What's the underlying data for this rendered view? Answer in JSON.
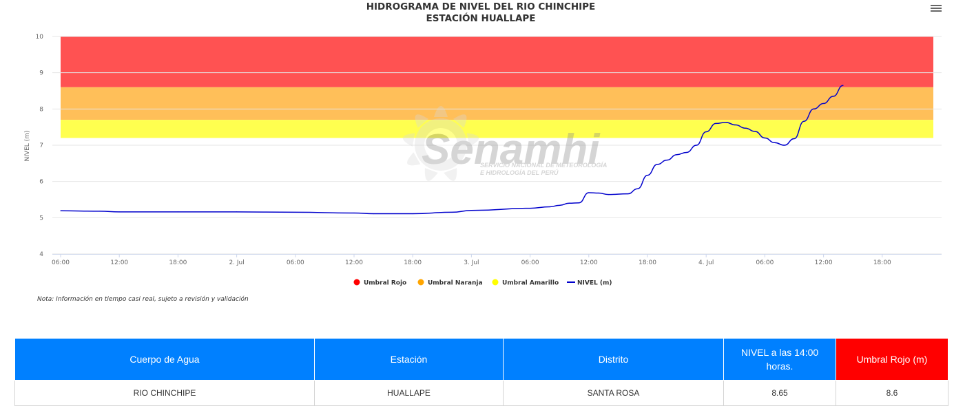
{
  "chart_data": {
    "type": "line",
    "title": "HIDROGRAMA DE NIVEL DEL RIO CHINCHIPE",
    "subtitle": "ESTACIÓN HUALLAPE",
    "ylabel": "NIVEL (m)",
    "xlabel": "",
    "ylim": [
      4,
      10
    ],
    "yticks": [
      "4",
      "5",
      "6",
      "7",
      "8",
      "9",
      "10"
    ],
    "xlim": [
      "2024-07-01T06:00",
      "2024-07-04T23:00"
    ],
    "xticks": [
      "06:00",
      "12:00",
      "18:00",
      "2. Jul",
      "06:00",
      "12:00",
      "18:00",
      "3. Jul",
      "06:00",
      "12:00",
      "18:00",
      "4. Jul",
      "06:00",
      "12:00",
      "18:00"
    ],
    "grid": true,
    "legend_position": "bottom-center",
    "bands": [
      {
        "name": "Umbral Rojo",
        "from": 8.6,
        "to": 10,
        "color": "#ff5252"
      },
      {
        "name": "Umbral Naranja",
        "from": 7.7,
        "to": 8.6,
        "color": "#ffbf59"
      },
      {
        "name": "Umbral Amarillo",
        "from": 7.2,
        "to": 7.7,
        "color": "#ffff4f"
      }
    ],
    "legend": [
      {
        "name": "Umbral Rojo",
        "color": "#ff0000",
        "marker": "circle"
      },
      {
        "name": "Umbral Naranja",
        "color": "#ffa500",
        "marker": "circle"
      },
      {
        "name": "Umbral Amarillo",
        "color": "#ffff00",
        "marker": "circle"
      },
      {
        "name": "NIVEL (m)",
        "color": "#0000cc",
        "marker": "line"
      }
    ],
    "series": [
      {
        "name": "NIVEL (m)",
        "color": "#0000cc",
        "x": [
          "2024-07-01T06:00",
          "2024-07-01T10:00",
          "2024-07-01T12:00",
          "2024-07-01T18:00",
          "2024-07-02T00:00",
          "2024-07-02T06:00",
          "2024-07-02T12:00",
          "2024-07-02T14:00",
          "2024-07-02T18:00",
          "2024-07-02T22:00",
          "2024-07-03T00:00",
          "2024-07-03T06:00",
          "2024-07-03T08:00",
          "2024-07-03T09:00",
          "2024-07-03T10:00",
          "2024-07-03T11:00",
          "2024-07-03T12:00",
          "2024-07-03T13:00",
          "2024-07-03T14:00",
          "2024-07-03T16:00",
          "2024-07-03T17:00",
          "2024-07-03T18:00",
          "2024-07-03T19:00",
          "2024-07-03T20:00",
          "2024-07-03T21:00",
          "2024-07-03T22:00",
          "2024-07-03T23:00",
          "2024-07-04T00:00",
          "2024-07-04T01:00",
          "2024-07-04T02:00",
          "2024-07-04T03:00",
          "2024-07-04T04:00",
          "2024-07-04T05:00",
          "2024-07-04T06:00",
          "2024-07-04T07:00",
          "2024-07-04T08:00",
          "2024-07-04T09:00",
          "2024-07-04T10:00",
          "2024-07-04T11:00",
          "2024-07-04T12:00",
          "2024-07-04T13:00",
          "2024-07-04T14:00"
        ],
        "values": [
          5.19,
          5.18,
          5.16,
          5.16,
          5.16,
          5.15,
          5.13,
          5.11,
          5.11,
          5.15,
          5.2,
          5.26,
          5.3,
          5.34,
          5.4,
          5.41,
          5.69,
          5.68,
          5.64,
          5.66,
          5.8,
          6.17,
          6.47,
          6.59,
          6.74,
          6.8,
          7.0,
          7.37,
          7.6,
          7.63,
          7.56,
          7.47,
          7.38,
          7.2,
          7.07,
          7.0,
          7.18,
          7.66,
          8.0,
          8.15,
          8.35,
          8.65
        ]
      }
    ]
  },
  "watermark": {
    "brand": "Senamhi",
    "tagline_1": "SERVICIO NACIONAL DE METEOROLOGÍA",
    "tagline_2": "E HIDROLOGÍA DEL PERÚ"
  },
  "note": "Nota: Información en tiempo casi real, sujeto a revisión y validación",
  "table": {
    "headers": [
      "Cuerpo de Agua",
      "Estación",
      "Distrito",
      "NIVEL a las 14:00 horas.",
      "Umbral Rojo (m)"
    ],
    "header_colors": [
      "#0080ff",
      "#0080ff",
      "#0080ff",
      "#0080ff",
      "#ff0000"
    ],
    "row": [
      "RIO CHINCHIPE",
      "HUALLAPE",
      "SANTA ROSA",
      "8.65",
      "8.6"
    ]
  }
}
